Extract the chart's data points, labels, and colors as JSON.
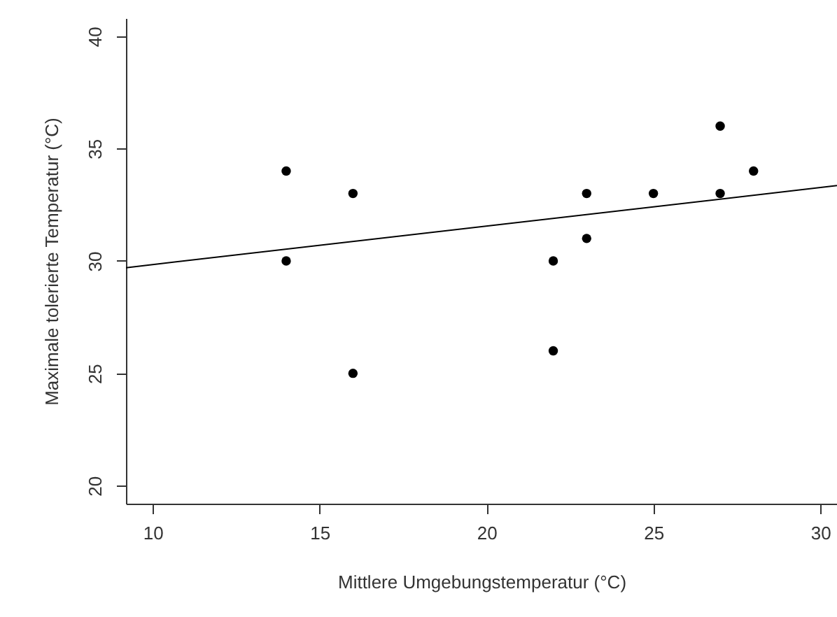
{
  "chart_data": {
    "type": "scatter",
    "xlabel": "Mittlere Umgebungstemperatur (°C)",
    "ylabel": "Maximale tolerierte Temperatur (°C)",
    "xlim": [
      9.2,
      30.5
    ],
    "ylim": [
      19.2,
      40.8
    ],
    "xticks": [
      10,
      15,
      20,
      25,
      30
    ],
    "yticks": [
      20,
      25,
      30,
      35,
      40
    ],
    "series": [
      {
        "marker": "circle",
        "color": "#000000",
        "x": [
          14,
          14,
          16,
          16,
          22,
          22,
          23,
          23,
          25,
          27,
          27,
          28
        ],
        "values": [
          34,
          30,
          33,
          25,
          30,
          26,
          33,
          31,
          33,
          36,
          33,
          34
        ]
      },
      {
        "type": "line",
        "color": "#000000",
        "line_style": "solid",
        "x": [
          9.2,
          30.5
        ],
        "values": [
          29.7,
          33.35
        ]
      }
    ]
  }
}
